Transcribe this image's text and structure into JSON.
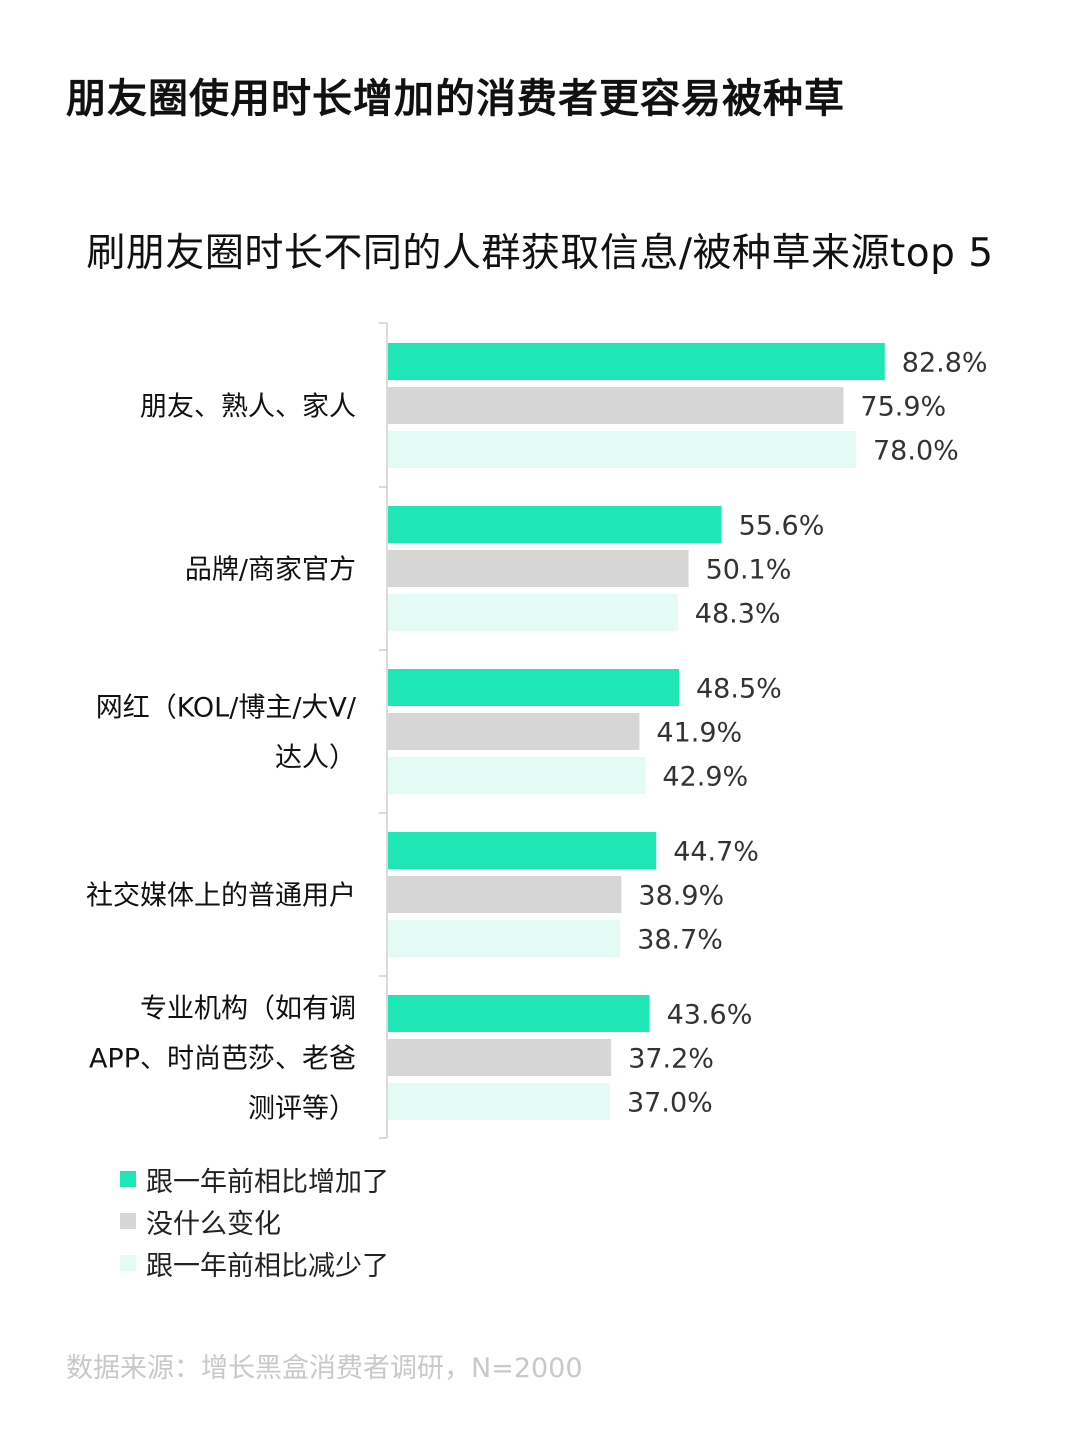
{
  "page_title": "朋友圈使用时长增加的消费者更容易被种草",
  "source": "数据来源：增长黑盒消费者调研，N=2000",
  "colors": {
    "increased": "#1fe6b5",
    "unchanged": "#d6d6d6",
    "decreased": "#e4fbf5"
  },
  "chart_data": {
    "type": "bar",
    "orientation": "horizontal",
    "title": "刷朋友圈时长不同的人群获取信息/被种草来源top 5",
    "categories": [
      [
        "朋友、熟人、家人"
      ],
      [
        "品牌/商家官方"
      ],
      [
        "网红（KOL/博主/大V/",
        "达人）"
      ],
      [
        "社交媒体上的普通用户"
      ],
      [
        "专业机构（如有调",
        "APP、时尚芭莎、老爸",
        "测评等）"
      ]
    ],
    "series": [
      {
        "name": "跟一年前相比增加了",
        "values": [
          82.8,
          55.6,
          48.5,
          44.7,
          43.6
        ],
        "labels": [
          "82.8%",
          "55.6%",
          "48.5%",
          "44.7%",
          "43.6%"
        ]
      },
      {
        "name": "没什么变化",
        "values": [
          75.9,
          50.1,
          41.9,
          38.9,
          37.2
        ],
        "labels": [
          "75.9%",
          "50.1%",
          "41.9%",
          "38.9%",
          "37.2%"
        ]
      },
      {
        "name": "跟一年前相比减少了",
        "values": [
          78.0,
          48.3,
          42.9,
          38.7,
          37.0
        ],
        "labels": [
          "78.0%",
          "48.3%",
          "42.9%",
          "38.7%",
          "37.0%"
        ]
      }
    ],
    "value_axis_range": [
      0,
      100
    ],
    "grid": false,
    "legend_position": "bottom-left"
  }
}
